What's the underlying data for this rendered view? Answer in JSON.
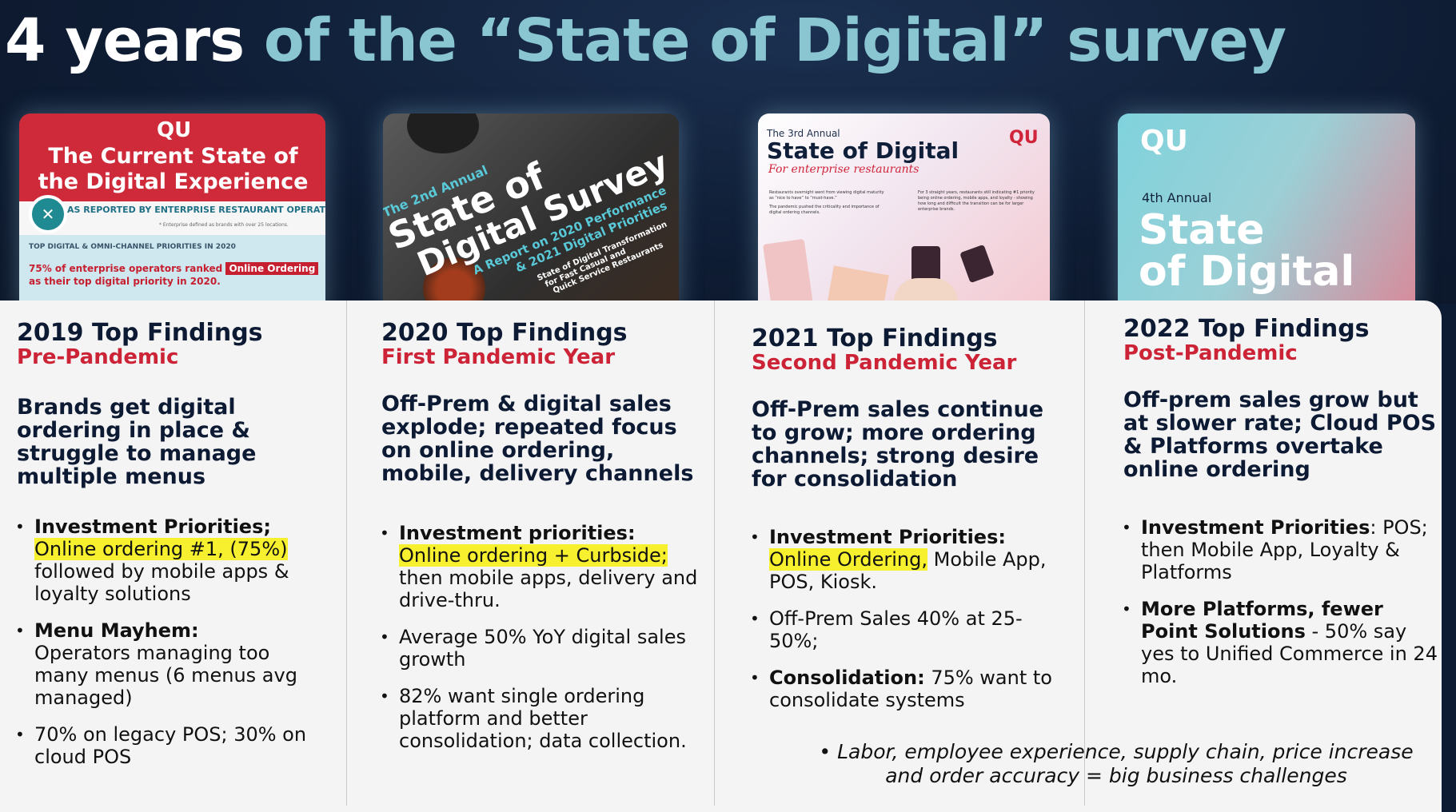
{
  "title": {
    "part1": "4 years",
    "part2": "of the “State of Digital” survey"
  },
  "covers": [
    {
      "year": "2019",
      "logo": "QU",
      "title": "The Current State of the Digital Experience",
      "subtitle": "AS REPORTED BY ENTERPRISE RESTAURANT OPERATORS*",
      "footnote": "* Enterprise defined as brands with over 25 locations.",
      "section": "TOP DIGITAL & OMNI-CHANNEL PRIORITIES IN 2020",
      "stat": "75% of enterprise operators ranked",
      "stat_tag": "Online Ordering",
      "stat_end": "as their top digital priority in 2020."
    },
    {
      "year": "2020",
      "kicker": "The 2nd Annual",
      "title_line1": "State of",
      "title_line2": "Digital Survey",
      "subtitle_line1": "A Report on 2020 Performance",
      "subtitle_line2": "& 2021 Digital Priorities",
      "tag_line1": "State of Digital Transformation",
      "tag_line2": "for Fast Casual and",
      "tag_line3": "Quick Service Restaurants"
    },
    {
      "year": "2021",
      "kicker": "The 3rd Annual",
      "title": "State of Digital",
      "script": "For enterprise restaurants",
      "logo": "QU",
      "blurb_left": "Restaurants overnight went from viewing digital maturity as “nice to have” to “must-have.”",
      "blurb_left2": "The pandemic pushed the criticality and importance of digital ordering channels.",
      "blurb_right": "For 3 straight years, restaurants still indicating #1 priority being online ordering, mobile apps, and loyalty - showing how long and difficult the transition can be for larger enterprise brands."
    },
    {
      "year": "2022",
      "logo": "QU",
      "kicker": "4th Annual",
      "title_line1": "State",
      "title_line2": "of Digital"
    }
  ],
  "columns": [
    {
      "year_label": "2019 Top Findings",
      "phase": "Pre-Pandemic",
      "headline": "Brands get digital ordering in place & struggle to manage multiple menus",
      "bullets": [
        {
          "bold": "Investment Priorities;",
          "highlight": "Online ordering #1, (75%)",
          "rest": "followed by mobile apps & loyalty solutions"
        },
        {
          "bold": "Menu Mayhem:",
          "highlight": "",
          "rest": "Operators managing too many menus (6 menus avg managed)"
        },
        {
          "bold": "",
          "highlight": "",
          "rest": "70% on legacy POS; 30% on cloud POS"
        }
      ]
    },
    {
      "year_label": "2020 Top Findings",
      "phase": "First Pandemic Year",
      "headline": "Off-Prem & digital sales explode; repeated focus on online ordering, mobile, delivery channels",
      "bullets": [
        {
          "bold": "Investment priorities:",
          "highlight": "Online ordering + Curbside;",
          "rest": "then mobile apps, delivery and drive-thru."
        },
        {
          "bold": "",
          "highlight": "",
          "rest": "Average 50% YoY digital sales growth"
        },
        {
          "bold": "",
          "highlight": "",
          "rest": "82% want single ordering platform and better consolidation; data collection."
        }
      ]
    },
    {
      "year_label": "2021 Top Findings",
      "phase": "Second Pandemic Year",
      "headline": "Off-Prem sales continue to grow; more ordering channels; strong desire for consolidation",
      "bullets": [
        {
          "bold": "Investment Priorities:",
          "highlight": "Online Ordering,",
          "rest": "Mobile App, POS, Kiosk."
        },
        {
          "bold": "",
          "highlight": "",
          "rest": "Off-Prem Sales 40% at 25-50%;"
        },
        {
          "bold": "Consolidation:",
          "highlight": "",
          "rest": "75% want to consolidate systems"
        }
      ]
    },
    {
      "year_label": "2022 Top Findings",
      "phase": "Post-Pandemic",
      "headline": "Off-prem sales grow but at slower rate; Cloud POS & Platforms overtake online ordering",
      "bullets": [
        {
          "bold": "Investment Priorities",
          "highlight": "",
          "rest": ": POS; then Mobile App, Loyalty & Platforms"
        },
        {
          "bold": "More Platforms, fewer Point Solutions",
          "highlight": "",
          "rest": " - 50% say yes to Unified Commerce in 24 mo."
        }
      ]
    }
  ],
  "footnote_line1": "Labor, employee experience, supply chain, price increase",
  "footnote_line2": "and order accuracy = big business challenges"
}
